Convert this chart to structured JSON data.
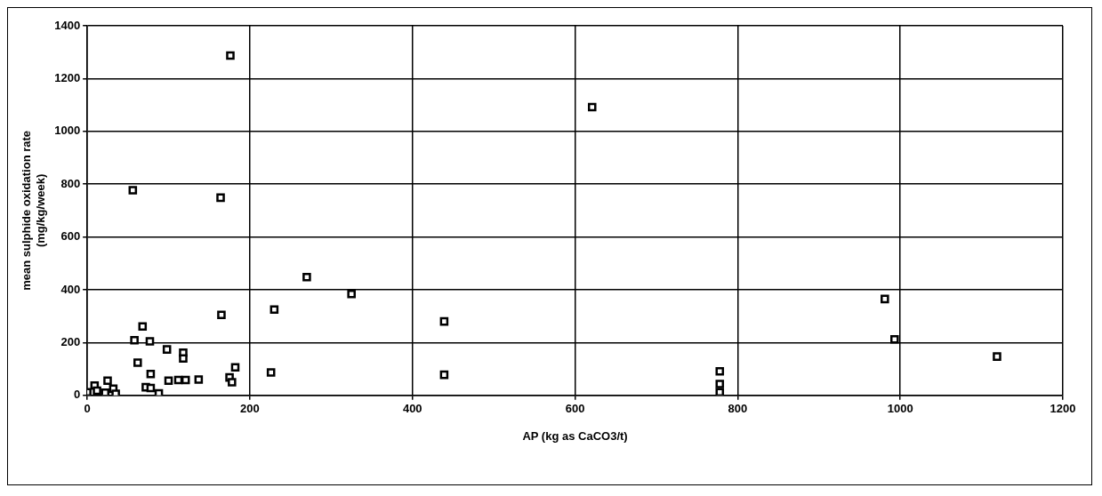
{
  "chart_data": {
    "type": "scatter",
    "xlabel": "AP (kg as CaCO3/t)",
    "ylabel": "mean sulphide oxidation rate (mg/kg/week)",
    "marker": "square",
    "grid": true,
    "legend": false,
    "xlim": [
      0,
      1200
    ],
    "xticks": [
      0,
      200,
      400,
      600,
      800,
      1000,
      1200
    ],
    "ylim": [
      0,
      1400
    ],
    "yticks": [
      0,
      200,
      400,
      600,
      800,
      1000,
      1200,
      1400
    ],
    "series": [
      {
        "color": "#000000",
        "x": [
          176,
          56,
          164,
          621,
          270,
          325,
          230,
          165,
          439,
          439,
          226,
          981,
          993,
          1119,
          778,
          778,
          778,
          182,
          175,
          178,
          68,
          58,
          77,
          98,
          118,
          118,
          62,
          78,
          100,
          112,
          121,
          137,
          72,
          88,
          78,
          0,
          9,
          25,
          12,
          32,
          35,
          22
        ],
        "values": [
          1287,
          777,
          749,
          1092,
          448,
          384,
          325,
          305,
          280,
          78,
          87,
          365,
          212,
          147,
          91,
          43,
          12,
          106,
          68,
          50,
          261,
          209,
          205,
          174,
          162,
          140,
          124,
          81,
          56,
          58,
          58,
          60,
          31,
          8,
          28,
          12,
          37,
          56,
          18,
          25,
          6,
          10
        ]
      }
    ]
  }
}
